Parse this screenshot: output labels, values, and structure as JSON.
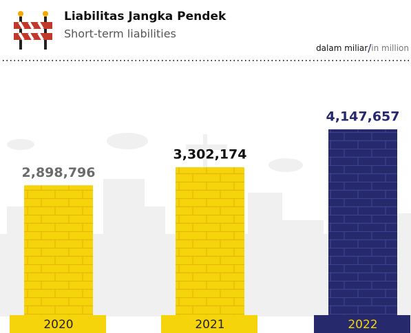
{
  "chart_data": {
    "type": "bar",
    "title": "Liabilitas Jangka Pendek",
    "subtitle": "Short-term liabilities",
    "unit_note": {
      "local": "dalam miliar",
      "separator": "/",
      "english": "in million"
    },
    "categories": [
      "2020",
      "2021",
      "2022"
    ],
    "values": [
      2898796,
      3302174,
      4147657
    ],
    "value_labels": [
      "2,898,796",
      "3,302,174",
      "4,147,657"
    ],
    "colors": [
      "#f6d40c",
      "#f6d40c",
      "#262a6c"
    ],
    "label_colors": [
      "#6b6b6b",
      "#111111",
      "#262a6c"
    ]
  }
}
